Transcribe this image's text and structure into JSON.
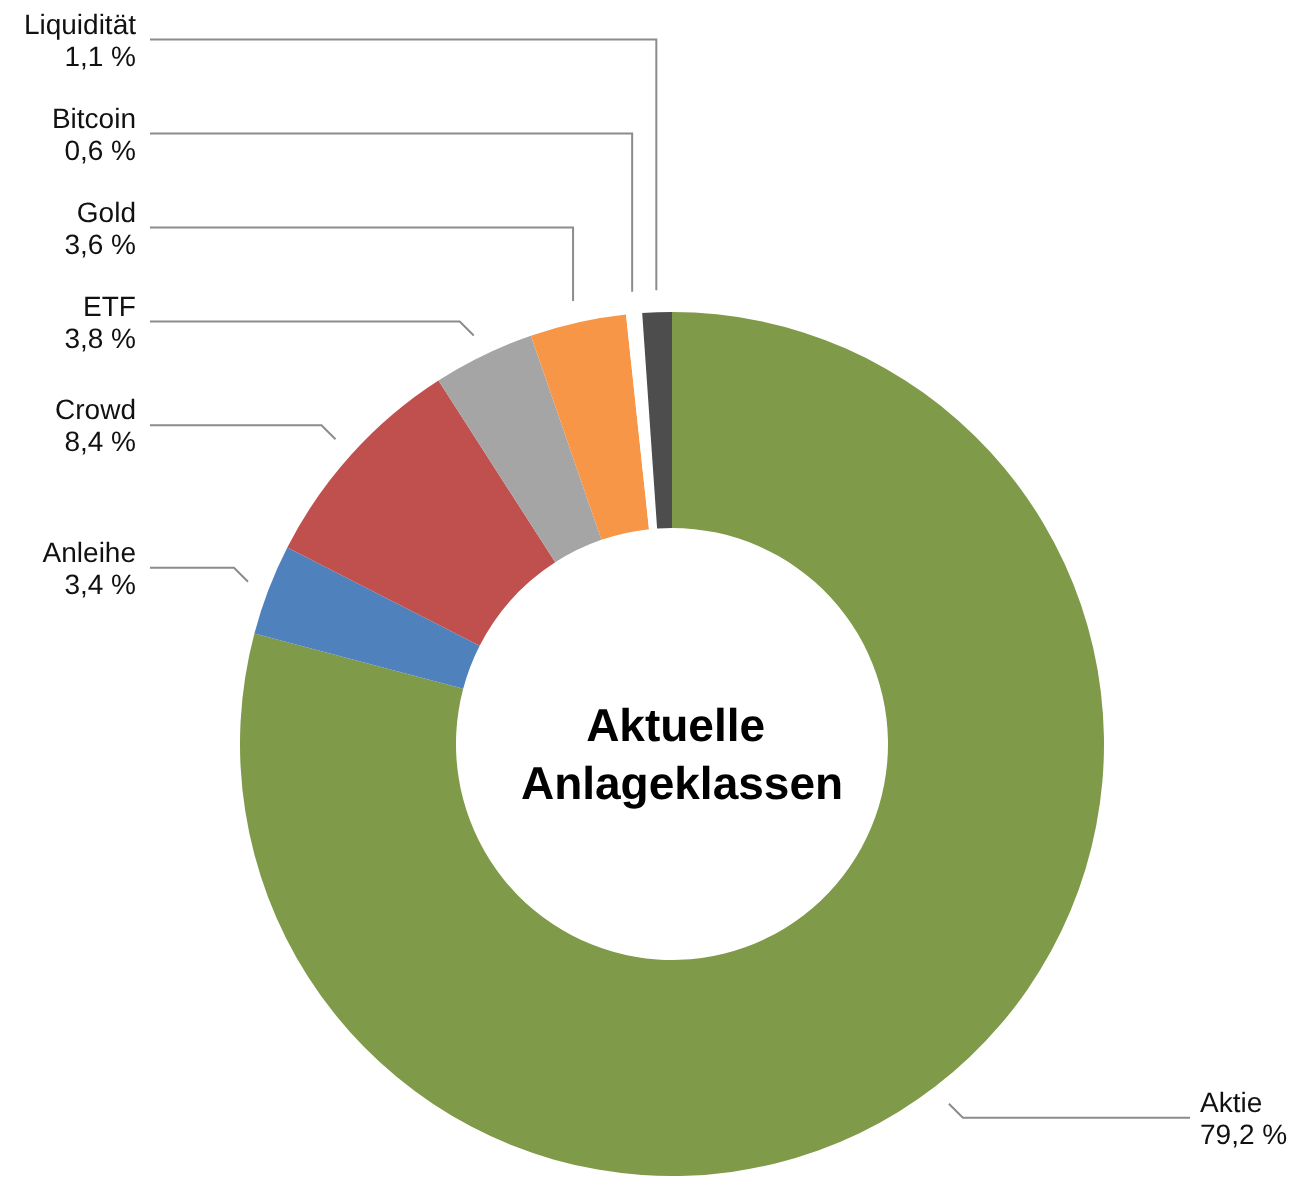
{
  "chart_data": {
    "type": "donut",
    "title": "Aktuelle Anlageklassen",
    "categories": [
      "Aktie",
      "Anleihe",
      "Crowd",
      "ETF",
      "Gold",
      "Bitcoin",
      "Liquidität"
    ],
    "values": [
      79.2,
      3.4,
      8.4,
      3.8,
      3.6,
      0.6,
      1.1
    ],
    "colors": [
      "#7f9a48",
      "#4f81bd",
      "#c0504d",
      "#a5a5a5",
      "#f79646",
      "#ffffff",
      "#4d4d4d"
    ],
    "value_labels": [
      "79,2 %",
      "3,4 %",
      "8,4 %",
      "3,8 %",
      "3,6 %",
      "0,6 %",
      "1,1 %"
    ]
  }
}
